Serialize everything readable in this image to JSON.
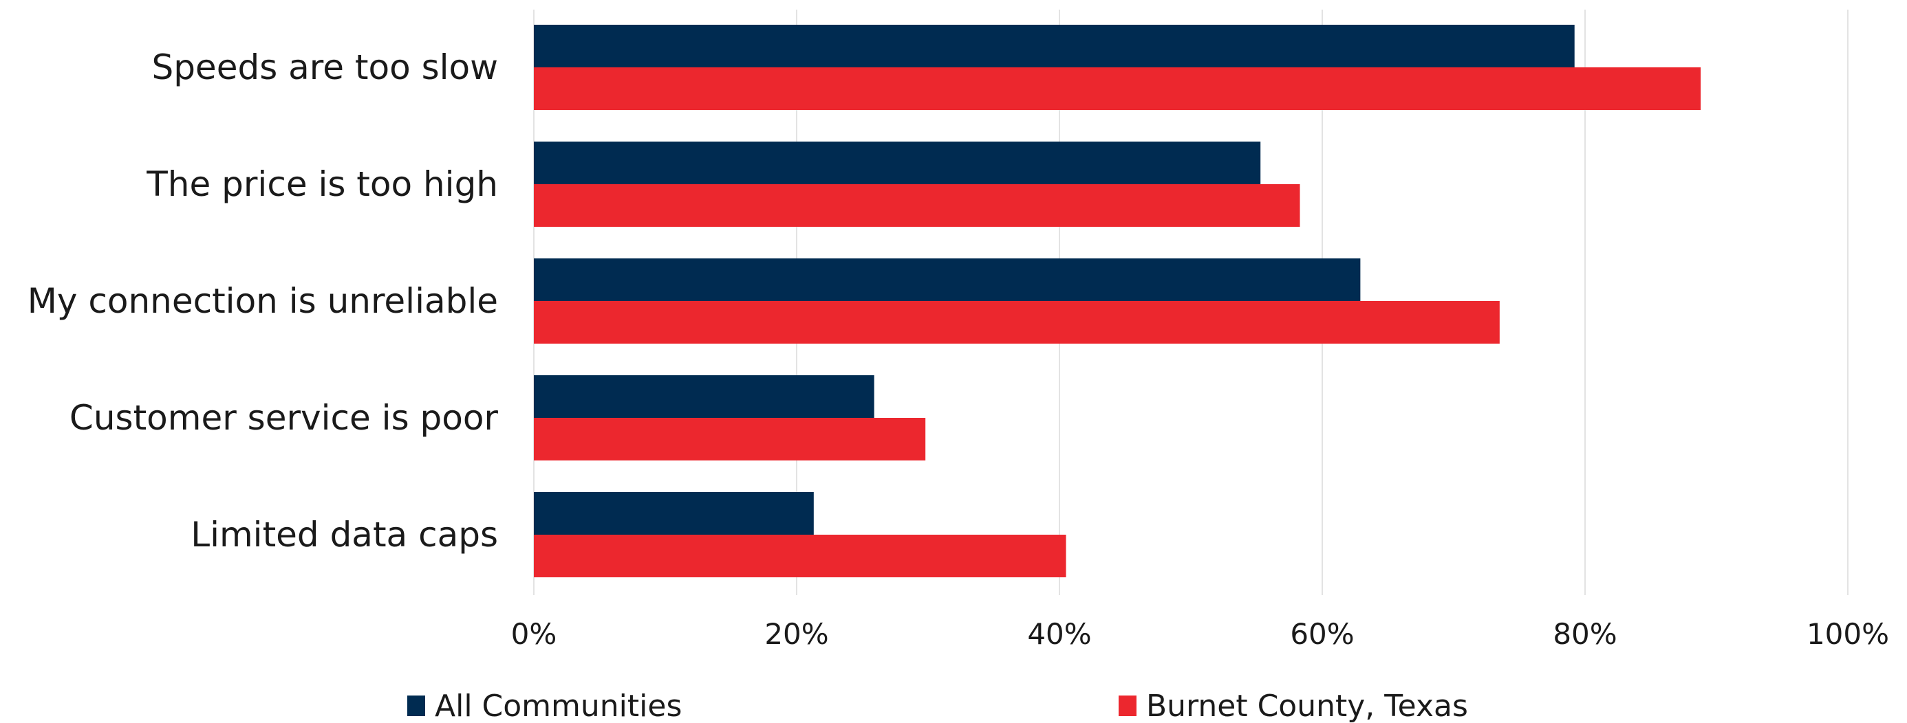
{
  "chart_data": {
    "type": "bar",
    "orientation": "horizontal",
    "categories": [
      "Speeds are too slow",
      "The price is too high",
      "My connection is unreliable",
      "Customer service is poor",
      "Limited data caps"
    ],
    "series": [
      {
        "name": "All Communities",
        "color": "#002b51",
        "values": [
          79.2,
          55.3,
          62.9,
          25.9,
          21.3
        ]
      },
      {
        "name": "Burnet County, Texas",
        "color": "#ec272e",
        "values": [
          88.8,
          58.3,
          73.5,
          29.8,
          40.5
        ]
      }
    ],
    "x_ticks": [
      "0%",
      "20%",
      "40%",
      "60%",
      "80%",
      "100%"
    ],
    "xlim": [
      0,
      100
    ],
    "grid": "vertical",
    "legend_position": "bottom"
  }
}
